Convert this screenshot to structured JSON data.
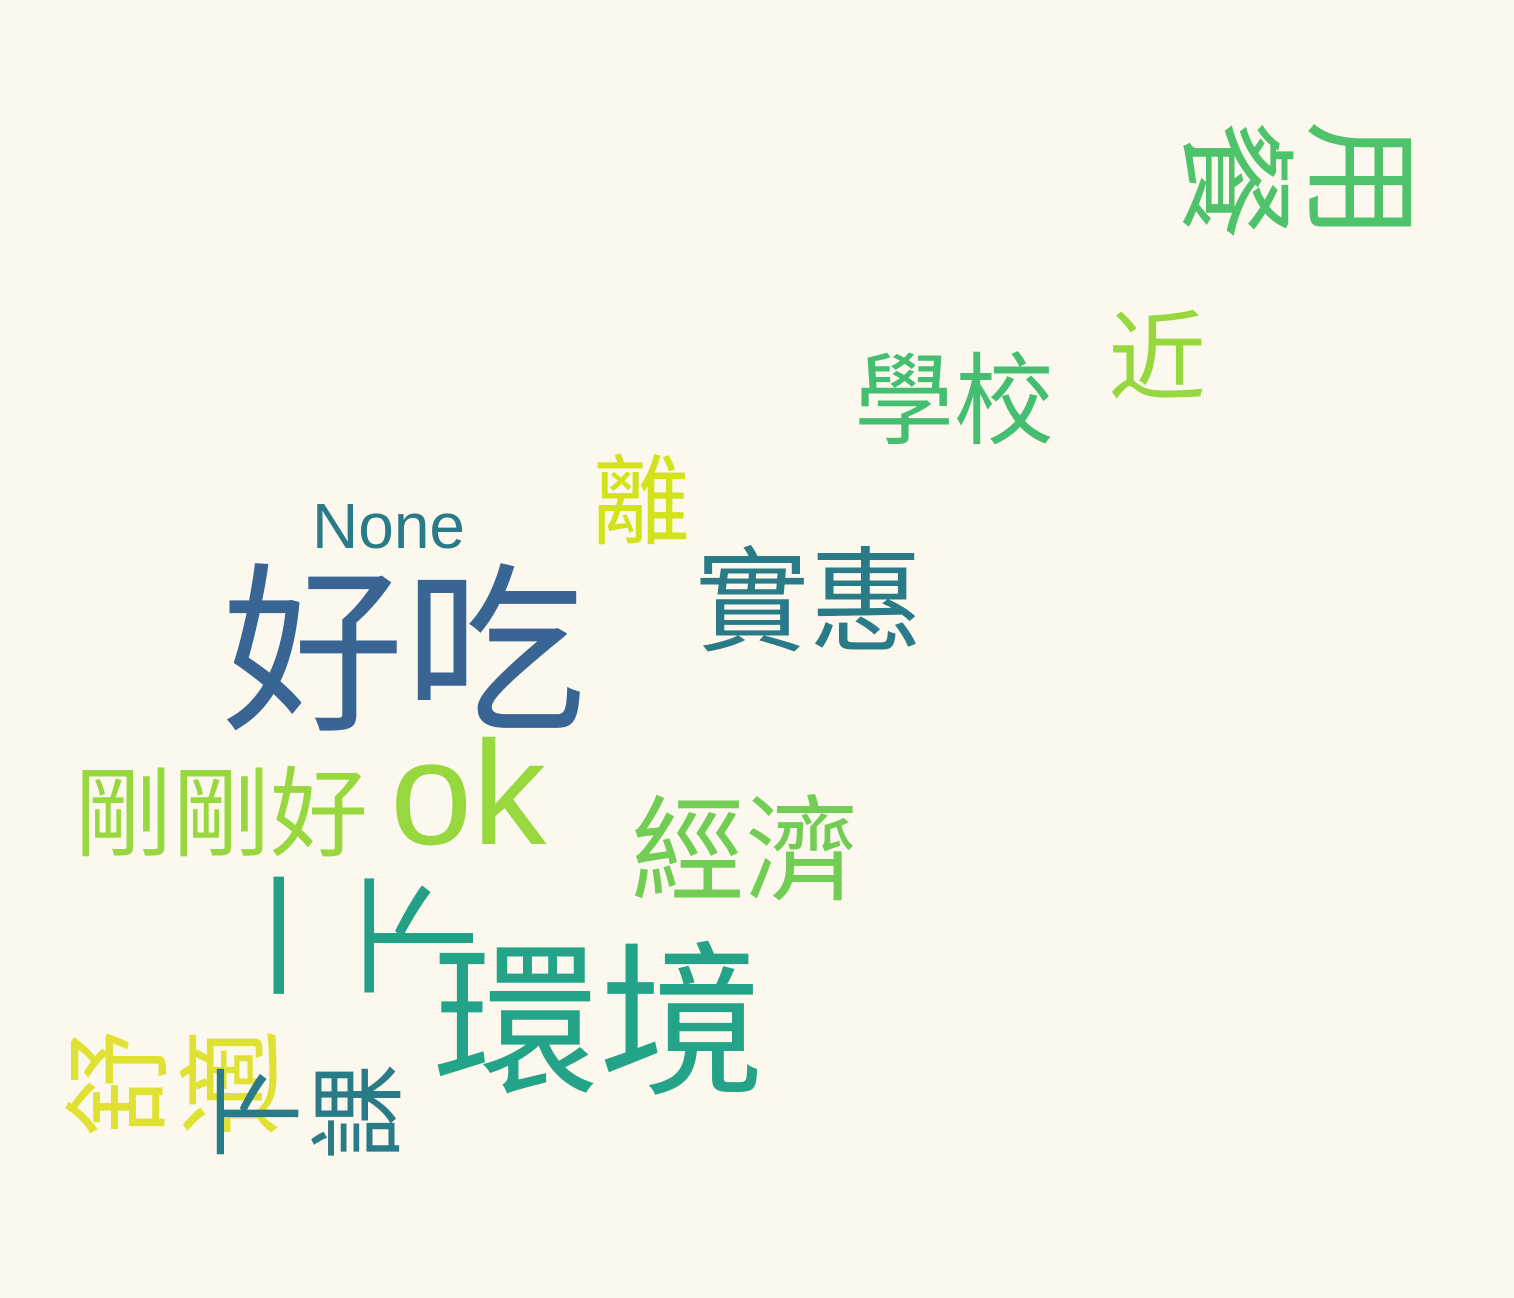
{
  "words": [
    {
      "text": "好吃",
      "color": "#386593"
    },
    {
      "text": "環境",
      "color": "#23a488"
    },
    {
      "text": "用餐",
      "color": "#4fc36c"
    },
    {
      "text": "實惠",
      "color": "#2a7b88"
    },
    {
      "text": "經濟",
      "color": "#72cd55"
    },
    {
      "text": "學校",
      "color": "#44bf72"
    },
    {
      "text": "ok",
      "color": "#98d83f"
    },
    {
      "text": "一下",
      "color": "#24a086"
    },
    {
      "text": "剛剛好",
      "color": "#98d83f"
    },
    {
      "text": "舒適",
      "color": "#e0e233"
    },
    {
      "text": "下課",
      "color": "#2a7b88"
    },
    {
      "text": "近",
      "color": "#98d83f"
    },
    {
      "text": "離",
      "color": "#d2e21b"
    },
    {
      "text": "None",
      "color": "#2a7b88"
    }
  ]
}
